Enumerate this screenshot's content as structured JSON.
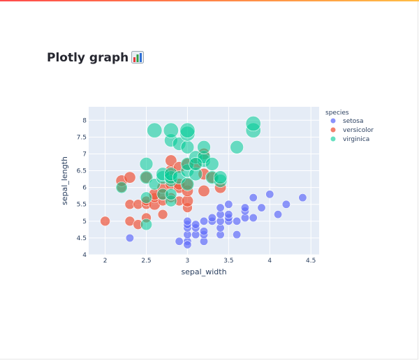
{
  "page": {
    "title": "Plotly graph",
    "title_icon": "bar-chart-emoji-icon",
    "accent_gradient": [
      "#ff4b4b",
      "#ffbd45"
    ]
  },
  "chart_data": {
    "type": "scatter",
    "title": "",
    "xlabel": "sepal_width",
    "ylabel": "sepal_length",
    "xlim": [
      1.8,
      4.6
    ],
    "ylim": [
      4,
      8.4
    ],
    "xticks": [
      "2",
      "2.5",
      "3",
      "3.5",
      "4",
      "4.5"
    ],
    "yticks": [
      "4",
      "4.5",
      "5",
      "5.5",
      "6",
      "6.5",
      "7",
      "7.5",
      "8"
    ],
    "grid": true,
    "plot_background": "#e5ecf6",
    "legend": {
      "title": "species",
      "placement": "right"
    },
    "size_encoding": "petal_length",
    "series": [
      {
        "name": "setosa",
        "color": "#636efa",
        "points": [
          [
            2.3,
            4.5
          ],
          [
            2.9,
            4.4
          ],
          [
            3,
            4.4
          ],
          [
            3,
            4.3
          ],
          [
            3,
            4.6
          ],
          [
            3,
            4.8
          ],
          [
            3,
            4.9
          ],
          [
            3,
            5
          ],
          [
            3.1,
            4.6
          ],
          [
            3.1,
            4.8
          ],
          [
            3.1,
            4.9
          ],
          [
            3.2,
            4.4
          ],
          [
            3.2,
            4.6
          ],
          [
            3.2,
            4.7
          ],
          [
            3.2,
            5
          ],
          [
            3.3,
            5
          ],
          [
            3.3,
            5.1
          ],
          [
            3.4,
            4.6
          ],
          [
            3.4,
            4.8
          ],
          [
            3.4,
            5
          ],
          [
            3.4,
            5.2
          ],
          [
            3.4,
            5.4
          ],
          [
            3.5,
            5
          ],
          [
            3.5,
            5.1
          ],
          [
            3.5,
            5.2
          ],
          [
            3.5,
            5.5
          ],
          [
            3.6,
            4.6
          ],
          [
            3.6,
            5
          ],
          [
            3.7,
            5.1
          ],
          [
            3.7,
            5.3
          ],
          [
            3.7,
            5.4
          ],
          [
            3.8,
            5.1
          ],
          [
            3.8,
            5.7
          ],
          [
            3.9,
            5.4
          ],
          [
            4,
            5.8
          ],
          [
            4.1,
            5.2
          ],
          [
            4.2,
            5.5
          ],
          [
            4.4,
            5.7
          ]
        ],
        "sizes": [
          3,
          3,
          3,
          3,
          3,
          3,
          3,
          3,
          3,
          3,
          3,
          3,
          3,
          3,
          3,
          3,
          3,
          3,
          3,
          3,
          3,
          3,
          3,
          3,
          3,
          3,
          3,
          3,
          3,
          3,
          3,
          3,
          3,
          3,
          3,
          3,
          3,
          3
        ]
      },
      {
        "name": "versicolor",
        "color": "#ef553b",
        "points": [
          [
            2,
            5
          ],
          [
            2.2,
            6
          ],
          [
            2.2,
            6.2
          ],
          [
            2.3,
            5
          ],
          [
            2.3,
            5.5
          ],
          [
            2.3,
            6.3
          ],
          [
            2.4,
            4.9
          ],
          [
            2.4,
            5.5
          ],
          [
            2.5,
            5.1
          ],
          [
            2.5,
            5.5
          ],
          [
            2.5,
            5.6
          ],
          [
            2.6,
            5.5
          ],
          [
            2.6,
            5.7
          ],
          [
            2.6,
            5.8
          ],
          [
            2.7,
            5.2
          ],
          [
            2.7,
            5.6
          ],
          [
            2.7,
            5.8
          ],
          [
            2.7,
            6
          ],
          [
            2.8,
            5.7
          ],
          [
            2.8,
            6.1
          ],
          [
            2.8,
            6.5
          ],
          [
            2.8,
            6.8
          ],
          [
            2.9,
            5.6
          ],
          [
            2.9,
            6
          ],
          [
            2.9,
            6.1
          ],
          [
            2.9,
            6.6
          ],
          [
            3,
            5.4
          ],
          [
            3,
            5.6
          ],
          [
            3,
            5.9
          ],
          [
            3,
            6.1
          ],
          [
            3,
            6.7
          ],
          [
            3.1,
            6.7
          ],
          [
            3.2,
            5.9
          ],
          [
            3.2,
            6.4
          ],
          [
            3.2,
            7
          ],
          [
            3.3,
            6.3
          ],
          [
            3.4,
            6
          ],
          [
            2.5,
            6.3
          ]
        ],
        "sizes": [
          4,
          4,
          5,
          4,
          4,
          5,
          4,
          4,
          4,
          4,
          4,
          5,
          4,
          5,
          4,
          4,
          5,
          5,
          4,
          5,
          5,
          5,
          4,
          5,
          5,
          5,
          4,
          5,
          5,
          5,
          5,
          5,
          5,
          5,
          5,
          5,
          5,
          5
        ]
      },
      {
        "name": "virginica",
        "color": "#00cc96",
        "points": [
          [
            2.2,
            6
          ],
          [
            2.5,
            4.9
          ],
          [
            2.5,
            5.7
          ],
          [
            2.5,
            6.3
          ],
          [
            2.5,
            6.7
          ],
          [
            2.6,
            6.1
          ],
          [
            2.6,
            7.7
          ],
          [
            2.7,
            5.8
          ],
          [
            2.7,
            6.3
          ],
          [
            2.7,
            6.4
          ],
          [
            2.8,
            5.6
          ],
          [
            2.8,
            5.8
          ],
          [
            2.8,
            6.2
          ],
          [
            2.8,
            6.3
          ],
          [
            2.8,
            6.4
          ],
          [
            2.8,
            7.4
          ],
          [
            2.8,
            7.7
          ],
          [
            2.9,
            6.3
          ],
          [
            2.9,
            7.3
          ],
          [
            3,
            6.1
          ],
          [
            3,
            6.5
          ],
          [
            3,
            6.7
          ],
          [
            3,
            7.2
          ],
          [
            3,
            7.6
          ],
          [
            3,
            7.7
          ],
          [
            3.1,
            6.4
          ],
          [
            3.1,
            6.9
          ],
          [
            3.2,
            6.8
          ],
          [
            3.2,
            6.9
          ],
          [
            3.2,
            7.2
          ],
          [
            3.3,
            6.3
          ],
          [
            3.3,
            6.7
          ],
          [
            3.4,
            6.2
          ],
          [
            3.4,
            6.3
          ],
          [
            3.6,
            7.2
          ],
          [
            3.8,
            7.7
          ],
          [
            3.8,
            7.9
          ],
          [
            3.1,
            6.7
          ]
        ],
        "sizes": [
          5,
          5,
          5,
          6,
          6,
          5,
          7,
          5,
          6,
          6,
          5,
          5,
          5,
          6,
          6,
          6,
          7,
          6,
          6,
          6,
          6,
          6,
          6,
          7,
          7,
          6,
          6,
          6,
          6,
          6,
          6,
          6,
          6,
          6,
          6,
          7,
          7,
          6
        ]
      }
    ]
  }
}
